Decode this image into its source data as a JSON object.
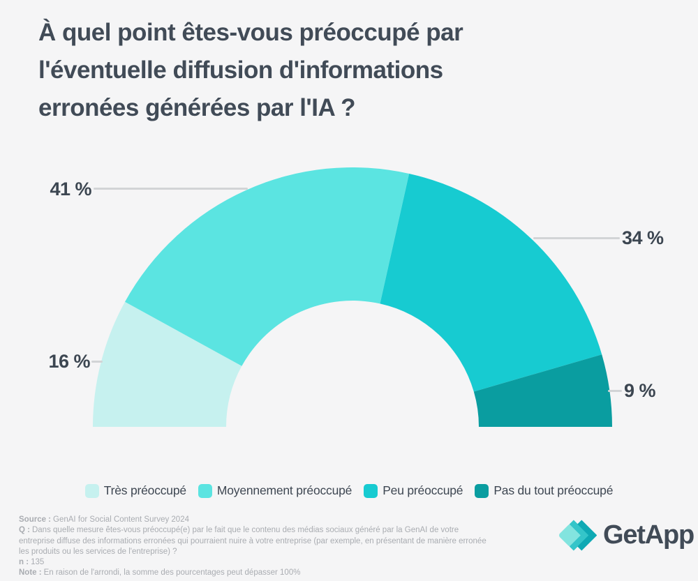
{
  "title": {
    "lines": [
      "À quel point êtes-vous préoccupé par",
      "l'éventuelle diffusion d'informations",
      "erronées générées par l'IA ?"
    ]
  },
  "chart_data": {
    "type": "pie",
    "subtype": "half-donut-gauge",
    "categories": [
      "Très préoccupé",
      "Moyennement préoccupé",
      "Peu préoccupé",
      "Pas du tout préoccupé"
    ],
    "values": [
      16,
      41,
      34,
      9
    ],
    "labels": [
      "16 %",
      "41 %",
      "34 %",
      "9 %"
    ],
    "colors": [
      "#C6F1EF",
      "#5BE4E1",
      "#17CBD1",
      "#0A9DA0"
    ],
    "unit": "%",
    "start_angle_deg": 180,
    "end_angle_deg": 0,
    "legend_position": "bottom"
  },
  "footer": {
    "source_label": "Source :",
    "source": "GenAI for Social Content Survey 2024",
    "q_label": "Q :",
    "q": "Dans quelle mesure êtes-vous préoccupé(e) par le fait que le contenu des médias sociaux généré par la GenAI de votre entreprise diffuse des informations erronées qui pourraient nuire à votre entreprise (par exemple, en présentant de manière erronée les produits ou les services de l'entreprise) ?",
    "n_label": "n :",
    "n": "135",
    "note_label": "Note :",
    "note": "En raison de l'arrondi, la somme des pourcentages peut dépasser 100%"
  },
  "logo": {
    "text": "GetApp"
  },
  "colors": {
    "background": "#F5F5F6",
    "title": "#414B57",
    "callout_text": "#3C4651",
    "leader_line": "#D2D4D6",
    "footer_text": "#A9ACB1",
    "logo_diamond": "#6FE0DA",
    "logo_chevron_1": "#34C5C9",
    "logo_chevron_2": "#0FA9B4"
  }
}
